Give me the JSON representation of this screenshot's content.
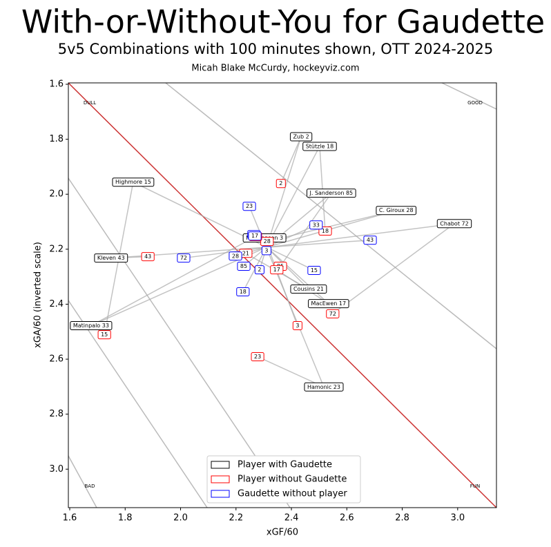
{
  "chart_data": {
    "type": "scatter",
    "title": "With-or-Without-You for Gaudette",
    "subtitle": "5v5 Combinations with 100 minutes shown, OTT 2024-2025",
    "author": "Micah Blake McCurdy, hockeyviz.com",
    "x_label": "xGF/60",
    "y_label": "xGA/60 (inverted scale)",
    "corner_labels": {
      "top_left": "DULL",
      "top_right": "GOOD",
      "bottom_left": "BAD",
      "bottom_right": "FUN"
    },
    "xlim": [
      1.595,
      3.14
    ],
    "ylim": [
      1.595,
      3.14
    ],
    "y_inverted": true,
    "xticks": [
      1.6,
      1.8,
      {
        "value": 2,
        "label": "2.0"
      },
      2.2,
      2.4,
      2.6,
      2.8,
      {
        "value": 3,
        "label": "3.0"
      }
    ],
    "yticks": [
      1.6,
      1.8,
      {
        "value": 2,
        "label": "2.0"
      },
      2.2,
      2.4,
      2.6,
      2.8,
      {
        "value": 3,
        "label": "3.0"
      }
    ],
    "legend": "lower center",
    "series": [
      {
        "name": "Player with Gaudette",
        "color": "#000000",
        "labels": [
          "Zub 2",
          "Stützle 18",
          "Highmore 15",
          "J. Sanderson 85",
          "C. Giroux 28",
          "Chabot 72",
          "Nick Jensen 3",
          "Kleven 43",
          "Cousins 21",
          "MacEwen 17",
          "Matinpalo 33",
          "Hamonic 23"
        ],
        "x": [
          2.435,
          2.502,
          1.829,
          2.544,
          2.778,
          2.988,
          2.303,
          1.749,
          2.462,
          2.534,
          1.677,
          2.517
        ],
        "values": [
          1.791,
          1.826,
          1.956,
          1.996,
          2.059,
          2.107,
          2.159,
          2.232,
          2.345,
          2.398,
          2.478,
          2.701
        ]
      },
      {
        "name": "Player without Gaudette",
        "color": "#ff0000",
        "labels": [
          "2",
          "18",
          "15",
          "85",
          "28",
          "72",
          "3",
          "43",
          "21",
          "17",
          "33",
          "23"
        ],
        "x": [
          2.362,
          2.522,
          1.725,
          2.36,
          2.312,
          2.549,
          2.422,
          1.882,
          2.235,
          2.347,
          2.27,
          2.278
        ],
        "values": [
          1.961,
          2.134,
          2.511,
          2.262,
          2.172,
          2.435,
          2.478,
          2.227,
          2.215,
          2.275,
          2.154,
          2.591
        ]
      },
      {
        "name": "Gaudette without player",
        "color": "#0000ff",
        "labels": [
          "2",
          "18",
          "15",
          "85",
          "28",
          "72",
          "3",
          "43",
          "21",
          "17",
          "33",
          "23"
        ],
        "x": [
          2.285,
          2.225,
          2.482,
          2.228,
          2.198,
          2.011,
          2.31,
          2.684,
          2.265,
          2.268,
          2.489,
          2.248
        ],
        "values": [
          2.275,
          2.355,
          2.277,
          2.262,
          2.225,
          2.232,
          2.205,
          2.167,
          2.147,
          2.152,
          2.112,
          2.044
        ]
      }
    ]
  }
}
